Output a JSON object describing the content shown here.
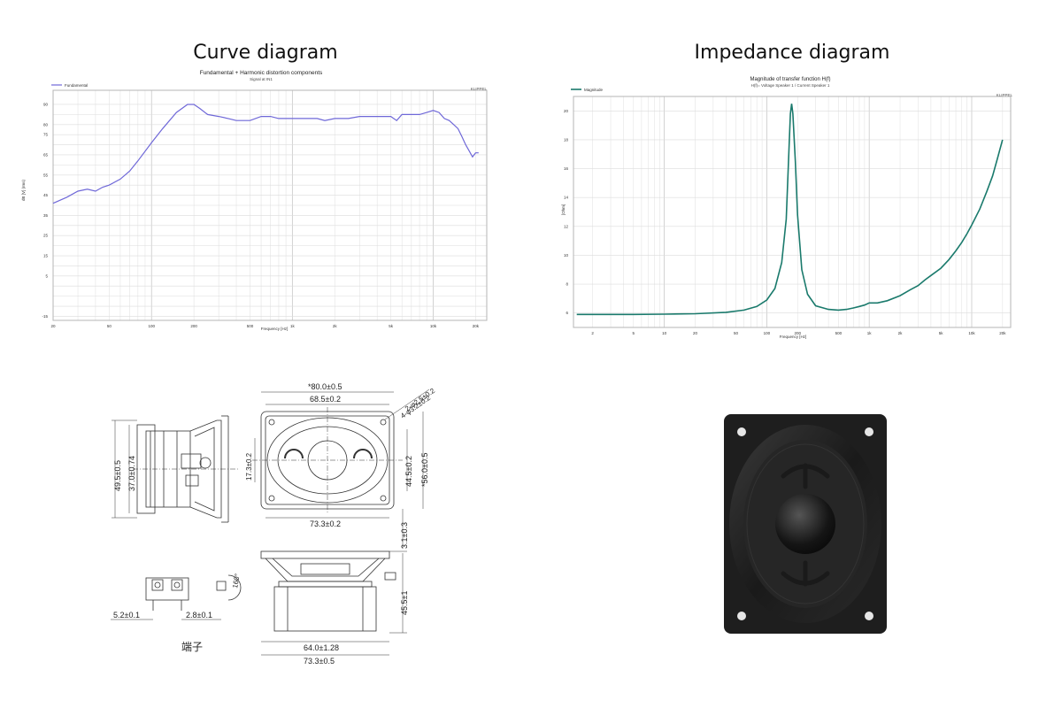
{
  "headings": {
    "left": "Curve diagram",
    "right": "Impedance diagram",
    "terminal": "端子"
  },
  "chart_data": [
    {
      "type": "line",
      "title": "Fundamental + Harmonic distortion components",
      "subtitle": "Signal at IN1",
      "brand": "KLIPPEL",
      "xlabel": "Frequency [Hz]",
      "ylabel": "dB [V] (rms)",
      "x_scale": "log",
      "xlim": [
        20,
        24000
      ],
      "ylim": [
        -17,
        97
      ],
      "x_ticks": [
        {
          "v": 20,
          "l": "20"
        },
        {
          "v": 50,
          "l": "50"
        },
        {
          "v": 100,
          "l": "100"
        },
        {
          "v": 200,
          "l": "200"
        },
        {
          "v": 500,
          "l": "500"
        },
        {
          "v": 1000,
          "l": "1k"
        },
        {
          "v": 2000,
          "l": "2k"
        },
        {
          "v": 5000,
          "l": "5k"
        },
        {
          "v": 10000,
          "l": "10k"
        },
        {
          "v": 20000,
          "l": "20k"
        }
      ],
      "y_ticks": [
        -15,
        -10,
        -5,
        0,
        5,
        10,
        15,
        20,
        25,
        30,
        35,
        40,
        45,
        50,
        55,
        60,
        65,
        70,
        75,
        80,
        85,
        90
      ],
      "y_tick_labels": [
        {
          "v": 90,
          "l": "90"
        },
        {
          "v": 80,
          "l": "80"
        },
        {
          "v": 75,
          "l": "75"
        },
        {
          "v": 65,
          "l": "65"
        },
        {
          "v": 55,
          "l": "55"
        },
        {
          "v": 45,
          "l": "45"
        },
        {
          "v": 35,
          "l": "35"
        },
        {
          "v": 25,
          "l": "25"
        },
        {
          "v": 15,
          "l": "15"
        },
        {
          "v": 5,
          "l": "5"
        },
        {
          "v": -15,
          "l": "-15"
        }
      ],
      "grid": true,
      "legend": "top-left",
      "series": [
        {
          "name": "Fundamental",
          "color": "#6f68d8",
          "x": [
            20,
            25,
            30,
            35,
            40,
            45,
            50,
            60,
            70,
            80,
            100,
            120,
            150,
            180,
            200,
            220,
            250,
            300,
            350,
            400,
            500,
            600,
            700,
            800,
            900,
            1000,
            1200,
            1500,
            1700,
            2000,
            2500,
            3000,
            3500,
            4000,
            4500,
            5000,
            5500,
            6000,
            7000,
            8000,
            9000,
            10000,
            11000,
            12000,
            13000,
            14000,
            15000,
            16000,
            17000,
            18000,
            19000,
            20000,
            21000
          ],
          "y": [
            41,
            44,
            47,
            48,
            47,
            49,
            50,
            53,
            57,
            62,
            71,
            78,
            86,
            90,
            90,
            88,
            85,
            84,
            83,
            82,
            82,
            84,
            84,
            83,
            83,
            83,
            83,
            83,
            82,
            83,
            83,
            84,
            84,
            84,
            84,
            84,
            82,
            85,
            85,
            85,
            86,
            87,
            86,
            83,
            82,
            80,
            78,
            74,
            70,
            67,
            64,
            66,
            66
          ]
        }
      ]
    },
    {
      "type": "line",
      "title": "Magnitude of transfer function H(f)",
      "subtitle": "H(f)= Voltage Speaker 1 / Current Speaker 1",
      "brand": "KLIPPEL",
      "xlabel": "Frequency [Hz]",
      "ylabel": "[Ohm]",
      "x_scale": "log",
      "xlim": [
        1.3,
        24000
      ],
      "ylim": [
        5,
        21
      ],
      "x_ticks": [
        {
          "v": 2,
          "l": "2"
        },
        {
          "v": 5,
          "l": "5"
        },
        {
          "v": 10,
          "l": "10"
        },
        {
          "v": 20,
          "l": "20"
        },
        {
          "v": 50,
          "l": "50"
        },
        {
          "v": 100,
          "l": "100"
        },
        {
          "v": 200,
          "l": "200"
        },
        {
          "v": 500,
          "l": "500"
        },
        {
          "v": 1000,
          "l": "1k"
        },
        {
          "v": 2000,
          "l": "2k"
        },
        {
          "v": 5000,
          "l": "5k"
        },
        {
          "v": 10000,
          "l": "10k"
        },
        {
          "v": 20000,
          "l": "20k"
        }
      ],
      "y_ticks": [
        6,
        8,
        10,
        12,
        14,
        16,
        18,
        20
      ],
      "y_tick_labels": [
        {
          "v": 6,
          "l": "6"
        },
        {
          "v": 8,
          "l": "8"
        },
        {
          "v": 10,
          "l": "10"
        },
        {
          "v": 12,
          "l": "12"
        },
        {
          "v": 14,
          "l": "14"
        },
        {
          "v": 16,
          "l": "16"
        },
        {
          "v": 18,
          "l": "18"
        },
        {
          "v": 20,
          "l": "20"
        }
      ],
      "grid": true,
      "legend": "top-left",
      "series": [
        {
          "name": "Magnitude",
          "color": "#1a7a6c",
          "x": [
            1.4,
            2,
            5,
            10,
            20,
            40,
            60,
            80,
            100,
            120,
            140,
            155,
            165,
            170,
            175,
            180,
            190,
            200,
            220,
            250,
            300,
            400,
            500,
            600,
            700,
            800,
            900,
            1000,
            1200,
            1500,
            2000,
            2500,
            3000,
            3500,
            4000,
            5000,
            6000,
            7000,
            8000,
            9000,
            10000,
            12000,
            14000,
            16000,
            18000,
            20000
          ],
          "y": [
            5.9,
            5.9,
            5.9,
            5.92,
            5.95,
            6.05,
            6.2,
            6.45,
            6.9,
            7.7,
            9.5,
            12.5,
            17.5,
            19.8,
            20.5,
            19.8,
            16.5,
            12.8,
            9.0,
            7.3,
            6.5,
            6.25,
            6.2,
            6.25,
            6.35,
            6.45,
            6.55,
            6.7,
            6.7,
            6.85,
            7.2,
            7.6,
            7.9,
            8.3,
            8.6,
            9.1,
            9.7,
            10.3,
            10.9,
            11.5,
            12.1,
            13.2,
            14.4,
            15.5,
            16.8,
            18.0
          ]
        }
      ]
    }
  ],
  "drawing": {
    "dims_top_view": [
      "*80.0±0.5",
      "68.5±0.2",
      "2-φ2.5±0.2",
      "4-φ3.2±0.2",
      "17.3±0.2",
      "44.5±0.2",
      "*56.0±0.5",
      "73.3±0.2"
    ],
    "dims_side_view": [
      "49.5±0.5",
      "37.0±0.74"
    ],
    "dims_front_view": [
      "3.1±0.3",
      "45.5±1",
      "64.0±1.28",
      "73.3±0.5"
    ],
    "dims_terminal": [
      "5.2±0.1",
      "2.8±0.1",
      "160°"
    ]
  }
}
